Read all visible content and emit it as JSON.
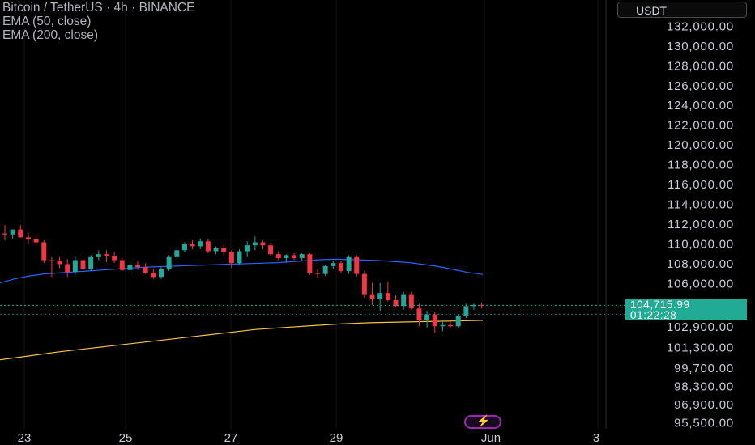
{
  "legend": {
    "title": "Bitcoin / TetherUS · 4h · BINANCE",
    "ema50": "EMA (50, close)",
    "ema200": "EMA (200, close)"
  },
  "currency_button": "USDT",
  "last_price": {
    "value": "104,715.99",
    "countdown": "01:22:28"
  },
  "colors": {
    "up": "#26a69a",
    "down": "#f23645",
    "ema50": "#2962ff",
    "ema200": "#f5c542",
    "price_tag": "#22ab94",
    "alert_icon": "#9c27b0"
  },
  "icons": [
    "lightning-alert-icon"
  ],
  "chart_data": {
    "type": "candlestick",
    "title": "Bitcoin / TetherUS · 4h · BINANCE",
    "x_ticks": [
      "23",
      "25",
      "27",
      "29",
      "Jun",
      "3"
    ],
    "y_ticks": [
      "132,000.00",
      "130,000.00",
      "128,000.00",
      "126,000.00",
      "124,000.00",
      "122,000.00",
      "120,000.00",
      "118,000.00",
      "116,000.00",
      "114,000.00",
      "112,000.00",
      "110,000.00",
      "108,000.00",
      "106,000.00",
      "102,900.00",
      "101,300.00",
      "99,700.00",
      "98,300.00",
      "96,900.00",
      "95,500.00"
    ],
    "ylim": [
      95000,
      133500
    ],
    "series": [
      {
        "name": "BTCUSDT",
        "candles": [
          {
            "o": 111050,
            "h": 111900,
            "l": 110350,
            "c": 110950
          },
          {
            "o": 110950,
            "h": 111450,
            "l": 110450,
            "c": 111450
          },
          {
            "o": 111450,
            "h": 111900,
            "l": 110650,
            "c": 110650
          },
          {
            "o": 110650,
            "h": 111150,
            "l": 110050,
            "c": 110450
          },
          {
            "o": 110450,
            "h": 111050,
            "l": 109850,
            "c": 110150
          },
          {
            "o": 110150,
            "h": 110350,
            "l": 108050,
            "c": 108350
          },
          {
            "o": 108350,
            "h": 108650,
            "l": 106650,
            "c": 108250
          },
          {
            "o": 108250,
            "h": 108650,
            "l": 107550,
            "c": 107950
          },
          {
            "o": 107950,
            "h": 108450,
            "l": 106650,
            "c": 107150
          },
          {
            "o": 107150,
            "h": 108750,
            "l": 106850,
            "c": 108350
          },
          {
            "o": 108350,
            "h": 108550,
            "l": 107250,
            "c": 107450
          },
          {
            "o": 107450,
            "h": 108850,
            "l": 107250,
            "c": 108650
          },
          {
            "o": 108650,
            "h": 109350,
            "l": 108350,
            "c": 108950
          },
          {
            "o": 108950,
            "h": 109350,
            "l": 108150,
            "c": 108750
          },
          {
            "o": 108750,
            "h": 109150,
            "l": 108050,
            "c": 108350
          },
          {
            "o": 108350,
            "h": 108550,
            "l": 107250,
            "c": 107350
          },
          {
            "o": 107350,
            "h": 108150,
            "l": 107050,
            "c": 107850
          },
          {
            "o": 107850,
            "h": 108250,
            "l": 107350,
            "c": 107650
          },
          {
            "o": 107650,
            "h": 108050,
            "l": 106950,
            "c": 107050
          },
          {
            "o": 107050,
            "h": 107450,
            "l": 106450,
            "c": 106650
          },
          {
            "o": 106650,
            "h": 107650,
            "l": 106450,
            "c": 107450
          },
          {
            "o": 107450,
            "h": 108850,
            "l": 107250,
            "c": 108650
          },
          {
            "o": 108650,
            "h": 109550,
            "l": 108350,
            "c": 109350
          },
          {
            "o": 109350,
            "h": 110150,
            "l": 109150,
            "c": 109950
          },
          {
            "o": 109950,
            "h": 110350,
            "l": 109450,
            "c": 109750
          },
          {
            "o": 109750,
            "h": 110550,
            "l": 109450,
            "c": 110250
          },
          {
            "o": 110250,
            "h": 110450,
            "l": 109050,
            "c": 109250
          },
          {
            "o": 109250,
            "h": 109750,
            "l": 108950,
            "c": 109550
          },
          {
            "o": 109550,
            "h": 109950,
            "l": 108850,
            "c": 109150
          },
          {
            "o": 109150,
            "h": 109350,
            "l": 107550,
            "c": 108050
          },
          {
            "o": 108050,
            "h": 109450,
            "l": 107850,
            "c": 109250
          },
          {
            "o": 109250,
            "h": 110250,
            "l": 108650,
            "c": 109850
          },
          {
            "o": 109850,
            "h": 110750,
            "l": 109350,
            "c": 110150
          },
          {
            "o": 110150,
            "h": 110350,
            "l": 109450,
            "c": 109850
          },
          {
            "o": 109850,
            "h": 110150,
            "l": 108750,
            "c": 108950
          },
          {
            "o": 108950,
            "h": 109250,
            "l": 108350,
            "c": 108550
          },
          {
            "o": 108550,
            "h": 108950,
            "l": 108150,
            "c": 108850
          },
          {
            "o": 108850,
            "h": 109050,
            "l": 108350,
            "c": 108550
          },
          {
            "o": 108550,
            "h": 109050,
            "l": 108250,
            "c": 108950
          },
          {
            "o": 108950,
            "h": 109050,
            "l": 106850,
            "c": 107050
          },
          {
            "o": 107050,
            "h": 107450,
            "l": 106550,
            "c": 106950
          },
          {
            "o": 106950,
            "h": 107850,
            "l": 106750,
            "c": 107750
          },
          {
            "o": 107750,
            "h": 108250,
            "l": 107450,
            "c": 108050
          },
          {
            "o": 108050,
            "h": 108250,
            "l": 107050,
            "c": 107250
          },
          {
            "o": 107250,
            "h": 108850,
            "l": 106950,
            "c": 108650
          },
          {
            "o": 108650,
            "h": 108850,
            "l": 106650,
            "c": 106950
          },
          {
            "o": 106950,
            "h": 107250,
            "l": 105350,
            "c": 105650
          },
          {
            "o": 105650,
            "h": 106050,
            "l": 104750,
            "c": 105250
          },
          {
            "o": 105250,
            "h": 106050,
            "l": 104250,
            "c": 105750
          },
          {
            "o": 105750,
            "h": 106150,
            "l": 105050,
            "c": 105150
          },
          {
            "o": 105150,
            "h": 105550,
            "l": 104550,
            "c": 104650
          },
          {
            "o": 104650,
            "h": 105850,
            "l": 104350,
            "c": 105650
          },
          {
            "o": 105650,
            "h": 105850,
            "l": 104350,
            "c": 104450
          },
          {
            "o": 104450,
            "h": 104850,
            "l": 102950,
            "c": 103450
          },
          {
            "o": 103450,
            "h": 104250,
            "l": 102850,
            "c": 103950
          },
          {
            "o": 103950,
            "h": 104150,
            "l": 102450,
            "c": 102950
          },
          {
            "o": 102950,
            "h": 103450,
            "l": 102550,
            "c": 103050
          },
          {
            "o": 103050,
            "h": 103350,
            "l": 102750,
            "c": 102950
          },
          {
            "o": 102950,
            "h": 103950,
            "l": 102850,
            "c": 103850
          },
          {
            "o": 103850,
            "h": 104850,
            "l": 103650,
            "c": 104650
          },
          {
            "o": 104650,
            "h": 104850,
            "l": 104350,
            "c": 104750
          },
          {
            "o": 104750,
            "h": 104950,
            "l": 104450,
            "c": 104716
          }
        ]
      },
      {
        "name": "EMA (50, close)",
        "values": [
          106050,
          106450,
          106750,
          106950,
          107050,
          107150,
          107250,
          107350,
          107450,
          107550,
          107650,
          107700,
          107750,
          107800,
          107850,
          107900,
          107950,
          108000,
          108050,
          108100,
          108200,
          108300,
          108400,
          108450,
          108400,
          108350,
          108300,
          108200,
          108100,
          107900,
          107700,
          107400,
          107100,
          106900
        ]
      },
      {
        "name": "EMA (200, close)",
        "values": [
          100350,
          100650,
          100950,
          101200,
          101450,
          101700,
          101950,
          102200,
          102450,
          102700,
          102850,
          103000,
          103150,
          103250,
          103300,
          103350,
          103400,
          103450
        ]
      }
    ],
    "last_price": 104715.99
  }
}
